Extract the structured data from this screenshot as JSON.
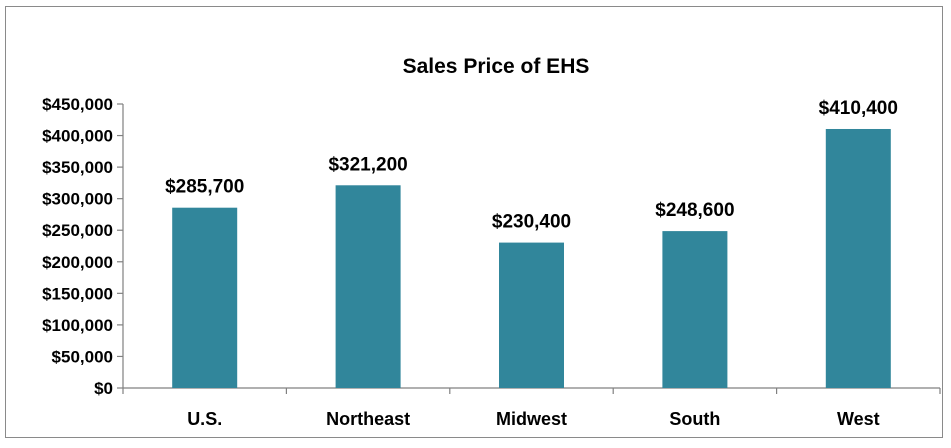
{
  "chart_data": {
    "type": "bar",
    "title": "Sales Price of EHS",
    "categories": [
      "U.S.",
      "Northeast",
      "Midwest",
      "South",
      "West"
    ],
    "values": [
      285700,
      321200,
      230400,
      248600,
      410400
    ],
    "data_labels": [
      "$285,700",
      "$321,200",
      "$230,400",
      "$248,600",
      "$410,400"
    ],
    "ylim": [
      0,
      450000
    ],
    "yticks": [
      0,
      50000,
      100000,
      150000,
      200000,
      250000,
      300000,
      350000,
      400000,
      450000
    ],
    "ytick_labels": [
      "$0",
      "$50,000",
      "$100,000",
      "$150,000",
      "$200,000",
      "$250,000",
      "$300,000",
      "$350,000",
      "$400,000",
      "$450,000"
    ],
    "xlabel": "",
    "ylabel": "",
    "grid": false,
    "legend": "none",
    "bar_color": "#31869b"
  }
}
